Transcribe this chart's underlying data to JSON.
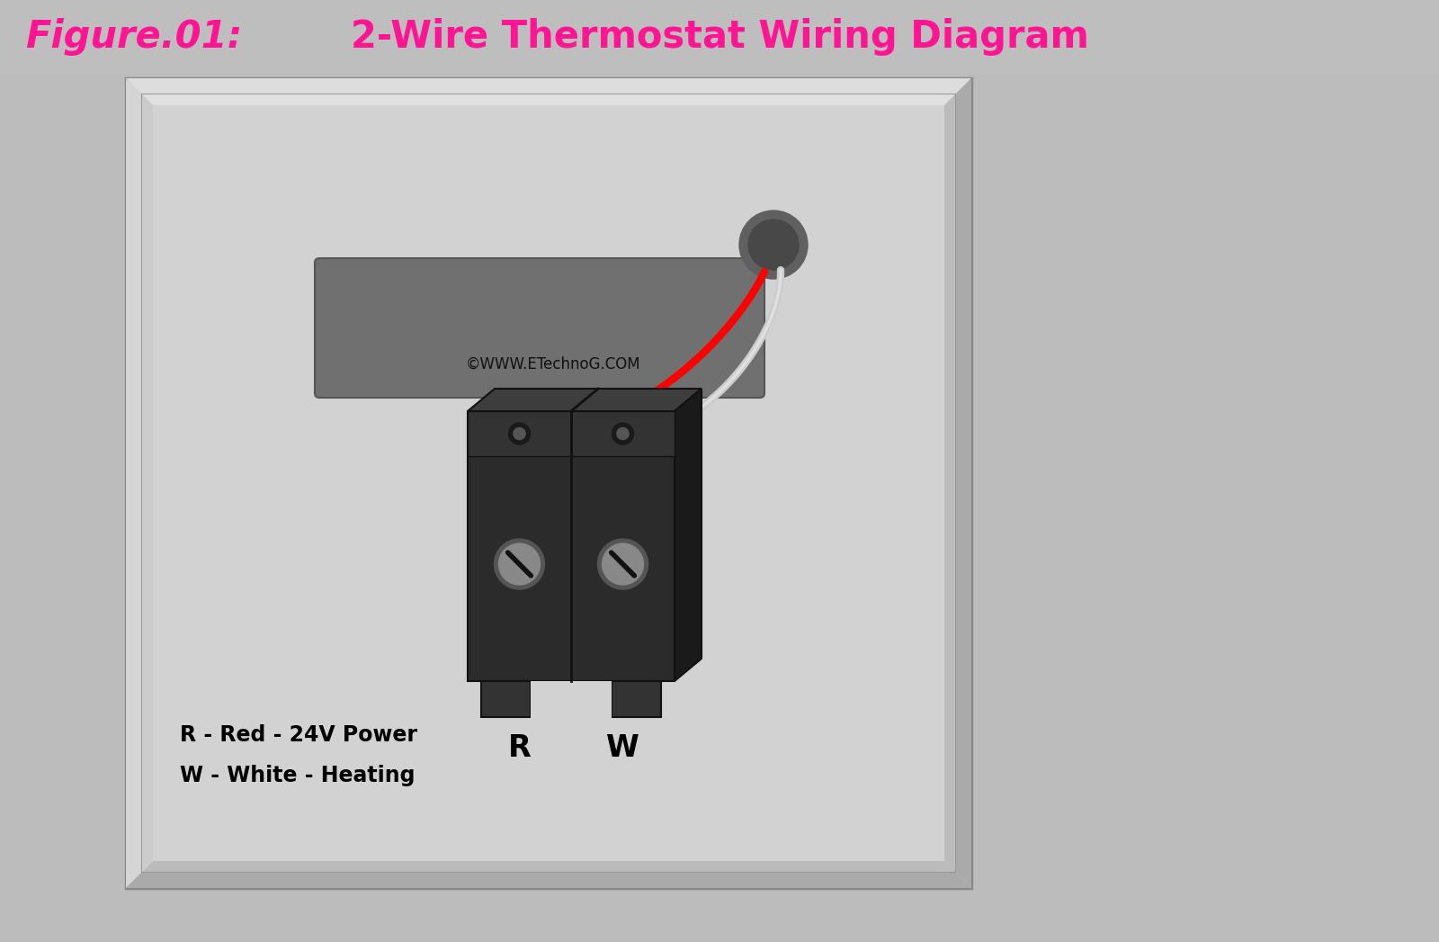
{
  "title_left": "Figure.01:",
  "title_right": "2-Wire Thermostat Wiring Diagram",
  "title_color": "#FF1493",
  "title_bg": "#BEBEBE",
  "bg_color": "#BCBCBC",
  "outer_box_face": "#C8C8C8",
  "outer_box_edge": "#888888",
  "inner_box_face": "#D8D8D8",
  "inner_box_edge": "#AAAAAA",
  "display_rect_color": "#707070",
  "wire_red": "#FF0000",
  "wire_white": "#D8D8D8",
  "label_R": "R",
  "label_W": "W",
  "legend_line1": "R - Red - 24V Power",
  "legend_line2": "W - White - Heating",
  "watermark": "©WWW.ETechnoG.COM",
  "title_fontsize": 30,
  "label_fontsize": 24,
  "legend_fontsize": 17,
  "watermark_fontsize": 12
}
